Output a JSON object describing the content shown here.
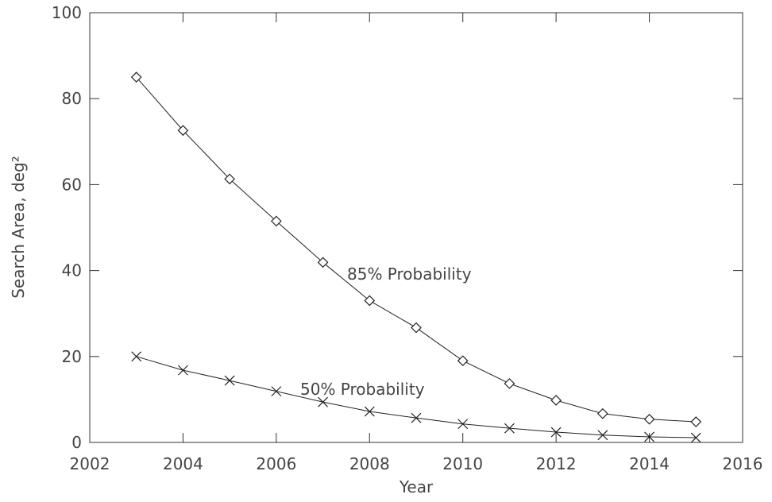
{
  "chart_data": {
    "type": "line",
    "xlabel": "Year",
    "ylabel": "Search Area, deg²",
    "x": [
      2003,
      2004,
      2005,
      2006,
      2007,
      2008,
      2009,
      2010,
      2011,
      2012,
      2013,
      2014,
      2015
    ],
    "series": [
      {
        "name": "85% Probability",
        "color": "#222222",
        "marker": "diamond",
        "values": [
          85,
          72.6,
          61.3,
          51.5,
          41.9,
          33,
          26.7,
          19,
          13.7,
          9.8,
          6.7,
          5.4,
          4.8
        ]
      },
      {
        "name": "50% Probability",
        "color": "#222222",
        "marker": "x",
        "values": [
          20,
          16.8,
          14.4,
          11.9,
          9.4,
          7.2,
          5.7,
          4.3,
          3.3,
          2.4,
          1.7,
          1.3,
          1.1
        ]
      }
    ],
    "xlim": [
      2002,
      2016
    ],
    "xticks": [
      2002,
      2004,
      2006,
      2008,
      2010,
      2012,
      2014,
      2016
    ],
    "ylim": [
      0,
      100
    ],
    "yticks": [
      0,
      20,
      40,
      60,
      80,
      100
    ],
    "grid": false
  }
}
